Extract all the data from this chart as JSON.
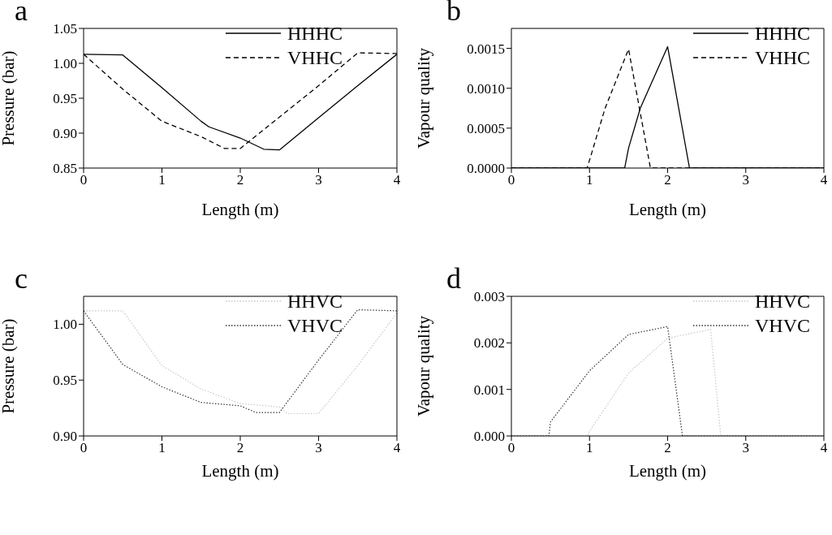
{
  "chart_data": [
    {
      "type": "line",
      "title": "a",
      "xlabel": "Length (m)",
      "ylabel": "Pressure (bar)",
      "xlim": [
        0,
        4
      ],
      "xticks": [
        0,
        1,
        2,
        3,
        4
      ],
      "ylim": [
        0.85,
        1.05
      ],
      "yticks": [
        {
          "value": 0.85,
          "label": "0.85"
        },
        {
          "value": 0.9,
          "label": "0.90"
        },
        {
          "value": 0.95,
          "label": "0.95"
        },
        {
          "value": 1.0,
          "label": "1.00"
        },
        {
          "value": 1.05,
          "label": "1.05"
        }
      ],
      "grid": false,
      "legend": "top right",
      "marker": "none",
      "series": [
        {
          "name": "HHHC",
          "color": "#000000",
          "line_style": "solid",
          "x": [
            0,
            0.5,
            1,
            1.5,
            1.6,
            2,
            2.3,
            2.5,
            3,
            3.5,
            4
          ],
          "values": [
            1.013,
            1.012,
            0.965,
            0.917,
            0.909,
            0.893,
            0.877,
            0.876,
            0.922,
            0.968,
            1.013
          ]
        },
        {
          "name": "VHHC",
          "color": "#000000",
          "line_style": "dashed",
          "x": [
            0,
            0.5,
            1,
            1.5,
            1.8,
            2,
            2.5,
            3,
            3.5,
            4
          ],
          "values": [
            1.013,
            0.963,
            0.917,
            0.895,
            0.878,
            0.878,
            0.923,
            0.968,
            1.015,
            1.014
          ]
        }
      ]
    },
    {
      "type": "line",
      "title": "b",
      "xlabel": "Length (m)",
      "ylabel": "Vapour quality",
      "xlim": [
        0,
        4
      ],
      "xticks": [
        0,
        1,
        2,
        3,
        4
      ],
      "ylim": [
        0,
        0.00175
      ],
      "yticks": [
        {
          "value": 0,
          "label": "0.0000"
        },
        {
          "value": 0.0005,
          "label": "0.0005"
        },
        {
          "value": 0.001,
          "label": "0.0010"
        },
        {
          "value": 0.0015,
          "label": "0.0015"
        }
      ],
      "grid": false,
      "legend": "top right",
      "marker": "none",
      "series": [
        {
          "name": "HHHC",
          "color": "#000000",
          "line_style": "solid",
          "x": [
            0,
            1.45,
            1.5,
            1.65,
            2,
            2.28,
            4
          ],
          "values": [
            0,
            0,
            0.00025,
            0.00075,
            0.00152,
            0,
            0
          ]
        },
        {
          "name": "VHHC",
          "color": "#000000",
          "line_style": "dashed",
          "x": [
            0,
            0.97,
            1.2,
            1.5,
            1.78,
            4
          ],
          "values": [
            0,
            0,
            0.00075,
            0.00149,
            0,
            0
          ]
        }
      ]
    },
    {
      "type": "line",
      "title": "c",
      "xlabel": "Length (m)",
      "ylabel": "Pressure (bar)",
      "xlim": [
        0,
        4
      ],
      "xticks": [
        0,
        1,
        2,
        3,
        4
      ],
      "ylim": [
        0.9,
        1.025
      ],
      "yticks": [
        {
          "value": 0.9,
          "label": "0.90"
        },
        {
          "value": 0.95,
          "label": "0.95"
        },
        {
          "value": 1.0,
          "label": "1.00"
        }
      ],
      "grid": false,
      "legend": "top right",
      "marker": "none",
      "series": [
        {
          "name": "HHVC",
          "color": "#c8c8c8",
          "line_style": "dotted",
          "x": [
            0,
            0.5,
            1,
            1.5,
            2,
            2.5,
            2.6,
            3,
            3.5,
            4
          ],
          "values": [
            1.012,
            1.012,
            0.963,
            0.942,
            0.929,
            0.926,
            0.92,
            0.92,
            0.963,
            1.01
          ]
        },
        {
          "name": "VHVC",
          "color": "#333333",
          "line_style": "dotted",
          "x": [
            0,
            0.5,
            1,
            1.5,
            2,
            2.2,
            2.5,
            3,
            3.5,
            4
          ],
          "values": [
            1.012,
            0.964,
            0.944,
            0.93,
            0.927,
            0.921,
            0.921,
            0.968,
            1.013,
            1.012
          ]
        }
      ]
    },
    {
      "type": "line",
      "title": "d",
      "xlabel": "Length (m)",
      "ylabel": "Vapour quality",
      "xlim": [
        0,
        4
      ],
      "xticks": [
        0,
        1,
        2,
        3,
        4
      ],
      "ylim": [
        0,
        0.003
      ],
      "yticks": [
        {
          "value": 0,
          "label": "0.000"
        },
        {
          "value": 0.001,
          "label": "0.001"
        },
        {
          "value": 0.002,
          "label": "0.002"
        },
        {
          "value": 0.003,
          "label": "0.003"
        }
      ],
      "grid": false,
      "legend": "top right",
      "marker": "none",
      "series": [
        {
          "name": "HHVC",
          "color": "#c8c8c8",
          "line_style": "dotted",
          "x": [
            0,
            0.97,
            1,
            1.5,
            2,
            2.55,
            2.68,
            4
          ],
          "values": [
            0,
            0,
            0.0001,
            0.00135,
            0.0021,
            0.00229,
            0,
            0
          ]
        },
        {
          "name": "VHVC",
          "color": "#333333",
          "line_style": "dotted",
          "x": [
            0,
            0.48,
            0.5,
            1,
            1.5,
            2,
            2.19,
            4
          ],
          "values": [
            0,
            0,
            0.0003,
            0.0014,
            0.00218,
            0.00235,
            0,
            0
          ]
        }
      ]
    }
  ]
}
